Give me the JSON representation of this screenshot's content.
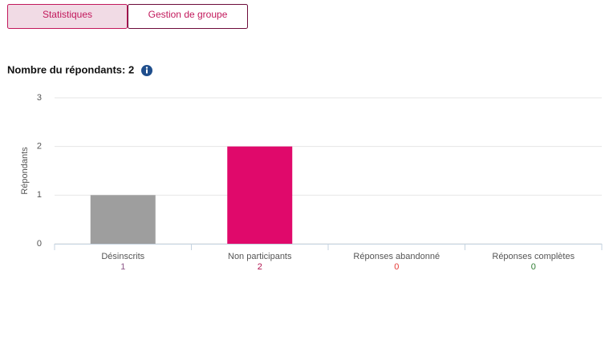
{
  "tabs": [
    "Statistiques",
    "Gestion de groupe"
  ],
  "heading": "Nombre du répondants: 2",
  "chart_data": {
    "type": "bar",
    "y_label": "Répondants",
    "categories": [
      "Désinscrits",
      "Non participants",
      "Réponses abandonné",
      "Réponses complètes"
    ],
    "values": [
      1,
      2,
      0,
      0
    ],
    "colors": [
      "#9e9e9e",
      "#e0096b",
      "#e53935",
      "#2e7d32"
    ],
    "label_colors": [
      "#8e5a8a",
      "#b0124f",
      "#e53935",
      "#2e7d32"
    ],
    "ylim": [
      0,
      3
    ],
    "yticks": [
      0,
      1,
      2,
      3
    ],
    "grid": true
  }
}
